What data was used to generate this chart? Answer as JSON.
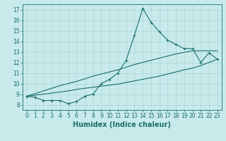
{
  "xlabel": "Humidex (Indice chaleur)",
  "ylabel": "",
  "background_color": "#c8eaea",
  "grid_color": "#a8d8d8",
  "line_color": "#1a6e6e",
  "xlim": [
    -0.5,
    23.5
  ],
  "ylim": [
    7.5,
    17.5
  ],
  "xticks": [
    0,
    1,
    2,
    3,
    4,
    5,
    6,
    7,
    8,
    9,
    10,
    11,
    12,
    13,
    14,
    15,
    16,
    17,
    18,
    19,
    20,
    21,
    22,
    23
  ],
  "yticks": [
    8,
    9,
    10,
    11,
    12,
    13,
    14,
    15,
    16,
    17
  ],
  "series_main": [
    8.8,
    8.7,
    8.4,
    8.4,
    8.4,
    8.1,
    8.3,
    8.8,
    9.0,
    10.0,
    10.4,
    11.0,
    12.2,
    14.6,
    17.1,
    15.8,
    14.9,
    14.1,
    13.7,
    13.3,
    13.3,
    12.0,
    12.9,
    12.3
  ],
  "series_trend1": [
    8.8,
    9.05,
    9.3,
    9.55,
    9.8,
    10.0,
    10.2,
    10.45,
    10.7,
    10.9,
    11.1,
    11.3,
    11.55,
    11.8,
    12.0,
    12.2,
    12.4,
    12.6,
    12.8,
    12.95,
    13.1,
    13.1,
    13.1,
    13.1
  ],
  "series_trend2": [
    8.8,
    8.9,
    9.0,
    9.1,
    9.2,
    9.3,
    9.45,
    9.55,
    9.65,
    9.75,
    9.85,
    9.95,
    10.1,
    10.25,
    10.4,
    10.55,
    10.7,
    10.9,
    11.1,
    11.3,
    11.45,
    11.7,
    12.0,
    12.3
  ],
  "xlabel_fontsize": 7,
  "tick_fontsize": 5.5
}
